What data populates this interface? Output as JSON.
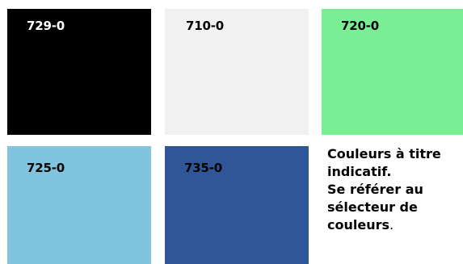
{
  "swatches": [
    {
      "code": "729-0",
      "color": "#000000",
      "text_color": "#ffffff"
    },
    {
      "code": "710-0",
      "color": "#f1f1f1",
      "text_color": "#000000"
    },
    {
      "code": "720-0",
      "color": "#7aee94",
      "text_color": "#000000"
    },
    {
      "code": "725-0",
      "color": "#80c4de",
      "text_color": "#000000"
    },
    {
      "code": "735-0",
      "color": "#2f5797",
      "text_color": "#000000"
    }
  ],
  "note": {
    "line1": "Couleurs à titre indicatif.",
    "line2": "Se référer au sélecteur de couleurs",
    "period": "."
  }
}
